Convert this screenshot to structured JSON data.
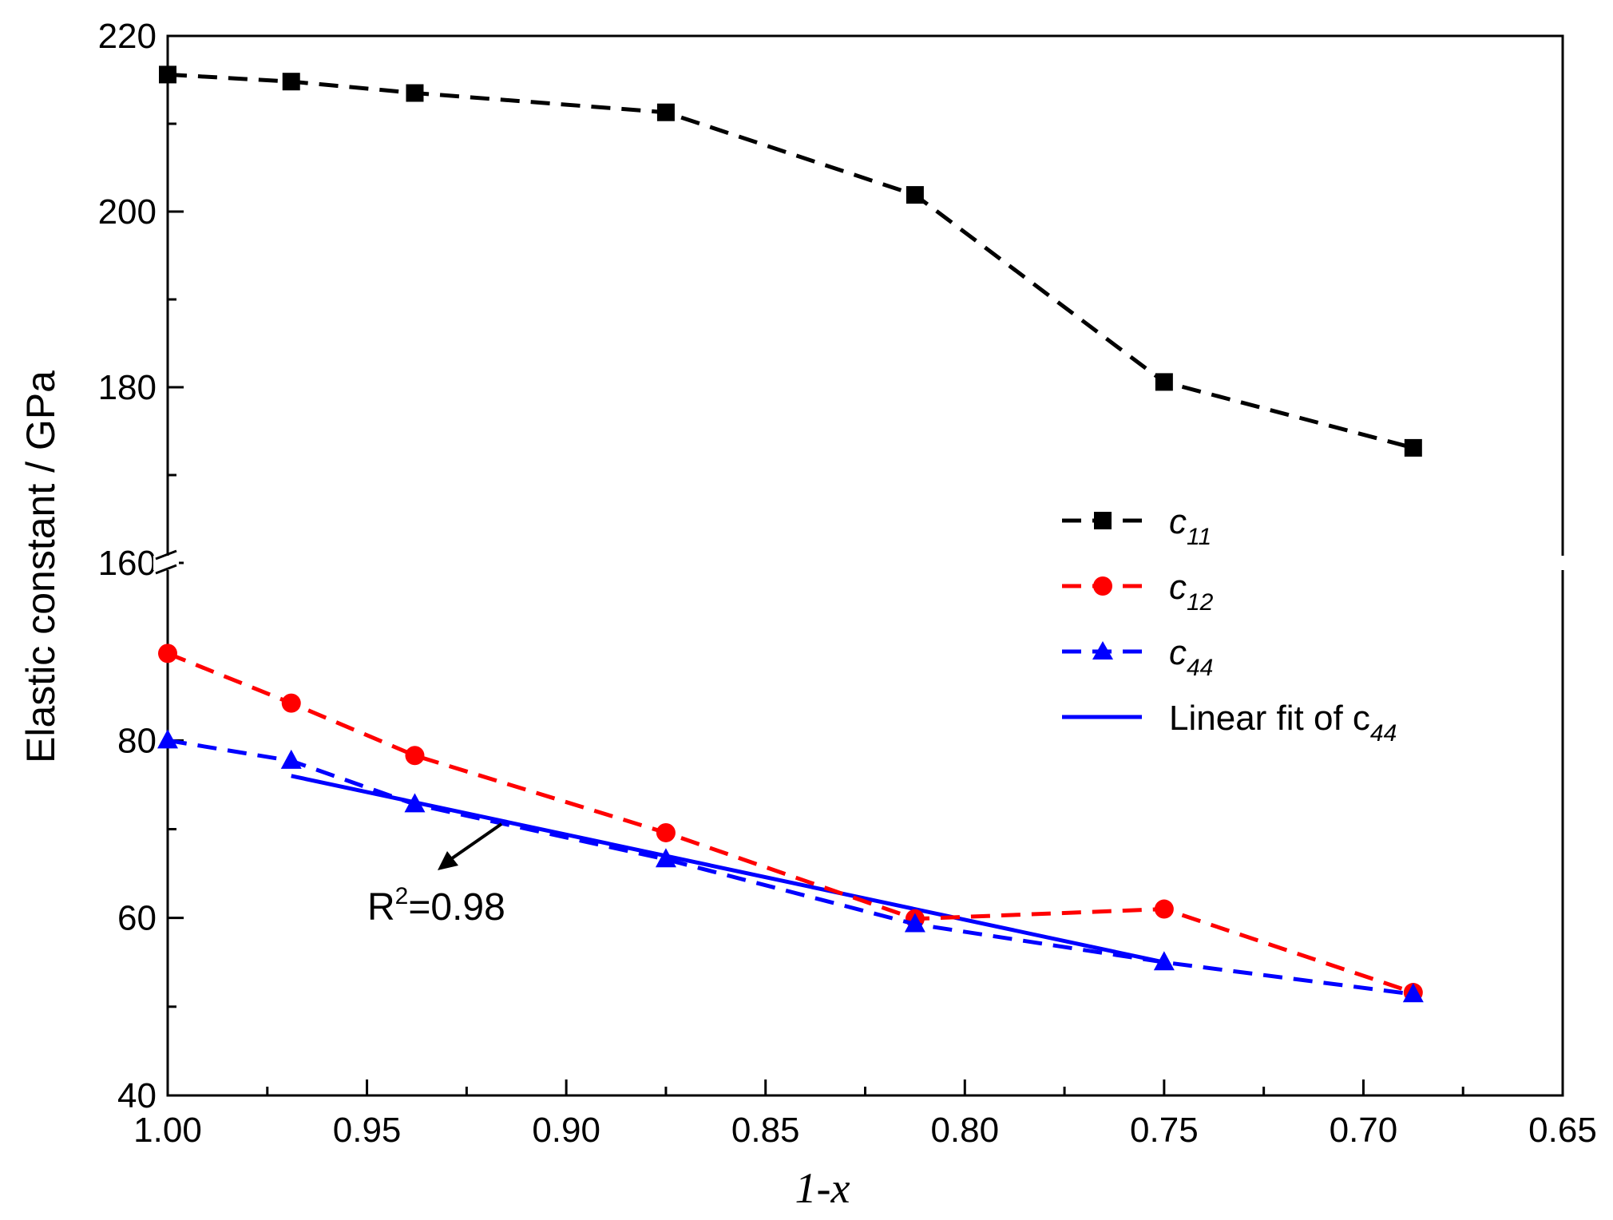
{
  "chart_data": {
    "type": "line",
    "title": "",
    "xlabel": "1-x",
    "ylabel": "Elastic constant / GPa",
    "xlim": [
      1.0,
      0.65
    ],
    "ylim_lower": [
      40,
      100
    ],
    "ylim_upper": [
      160,
      220
    ],
    "axis_break": "between 100 and 160 on the y axis",
    "xticks": [
      "1.00",
      "0.95",
      "0.90",
      "0.85",
      "0.80",
      "0.75",
      "0.70",
      "0.65"
    ],
    "yticks": [
      "40",
      "60",
      "80",
      "160",
      "180",
      "200",
      "220"
    ],
    "x": [
      1.0,
      0.969,
      0.938,
      0.875,
      0.8125,
      0.75,
      0.6875
    ],
    "series": [
      {
        "name": "c",
        "subscript": "11",
        "color": "#000000",
        "marker": "square",
        "style": "dashed",
        "values": [
          215.6,
          214.8,
          213.5,
          211.3,
          201.9,
          180.6,
          173.1
        ]
      },
      {
        "name": "c",
        "subscript": "12",
        "color": "#ff0000",
        "marker": "circle",
        "style": "dashed",
        "values": [
          89.8,
          84.2,
          78.3,
          69.6,
          59.9,
          61.0,
          51.6
        ]
      },
      {
        "name": "c",
        "subscript": "44",
        "color": "#0000ff",
        "marker": "triangle",
        "style": "dashed",
        "values": [
          80.0,
          77.7,
          72.8,
          66.6,
          59.3,
          55.0,
          51.4
        ]
      }
    ],
    "fit": {
      "name": "Linear fit of c",
      "subscript": "44",
      "color": "#0000ff",
      "style": "solid",
      "x": [
        0.969,
        0.75
      ],
      "values": [
        76.0,
        55.0
      ]
    },
    "annotation": {
      "text": "R",
      "superscript": "2",
      "suffix": "=0.98"
    },
    "legend_position": "right-middle"
  }
}
